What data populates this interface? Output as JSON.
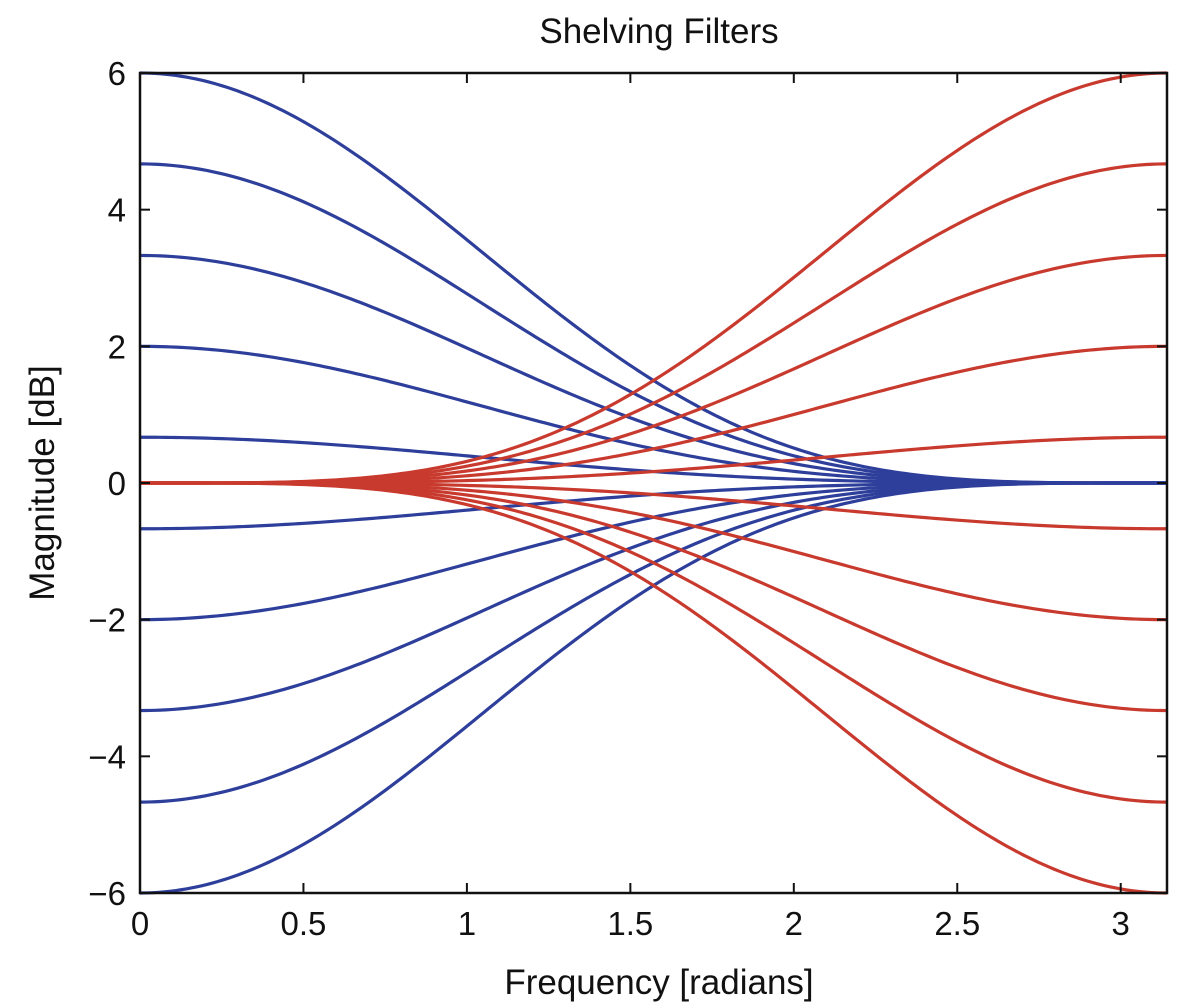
{
  "chart_data": {
    "type": "line",
    "title": "Shelving Filters",
    "xlabel": "Frequency [radians]",
    "ylabel": "Magnitude [dB]",
    "xlim": [
      0,
      3.1416
    ],
    "ylim": [
      -6,
      6
    ],
    "xticks": [
      0,
      0.5,
      1,
      1.5,
      2,
      2.5,
      3
    ],
    "xtick_labels": [
      "0",
      "0.5",
      "1",
      "1.5",
      "2",
      "2.5",
      "3"
    ],
    "yticks": [
      -6,
      -4,
      -2,
      0,
      2,
      4,
      6
    ],
    "ytick_labels": [
      "−6",
      "−4",
      "−2",
      "0",
      "2",
      "4",
      "6"
    ],
    "grid": false,
    "gains_db": [
      6,
      4.67,
      3.33,
      2,
      0.67,
      -0.67,
      -2,
      -3.33,
      -4.67,
      -6
    ],
    "series": [
      {
        "kind": "low-shelf",
        "color": "#2e3f9b",
        "gains_db": [
          6,
          4.67,
          3.33,
          2,
          0.67,
          -0.67,
          -2,
          -3.33,
          -4.67,
          -6
        ]
      },
      {
        "kind": "high-shelf",
        "color": "#c93a2e",
        "gains_db": [
          6,
          4.67,
          3.33,
          2,
          0.67,
          -0.67,
          -2,
          -3.33,
          -4.67,
          -6
        ]
      }
    ]
  }
}
